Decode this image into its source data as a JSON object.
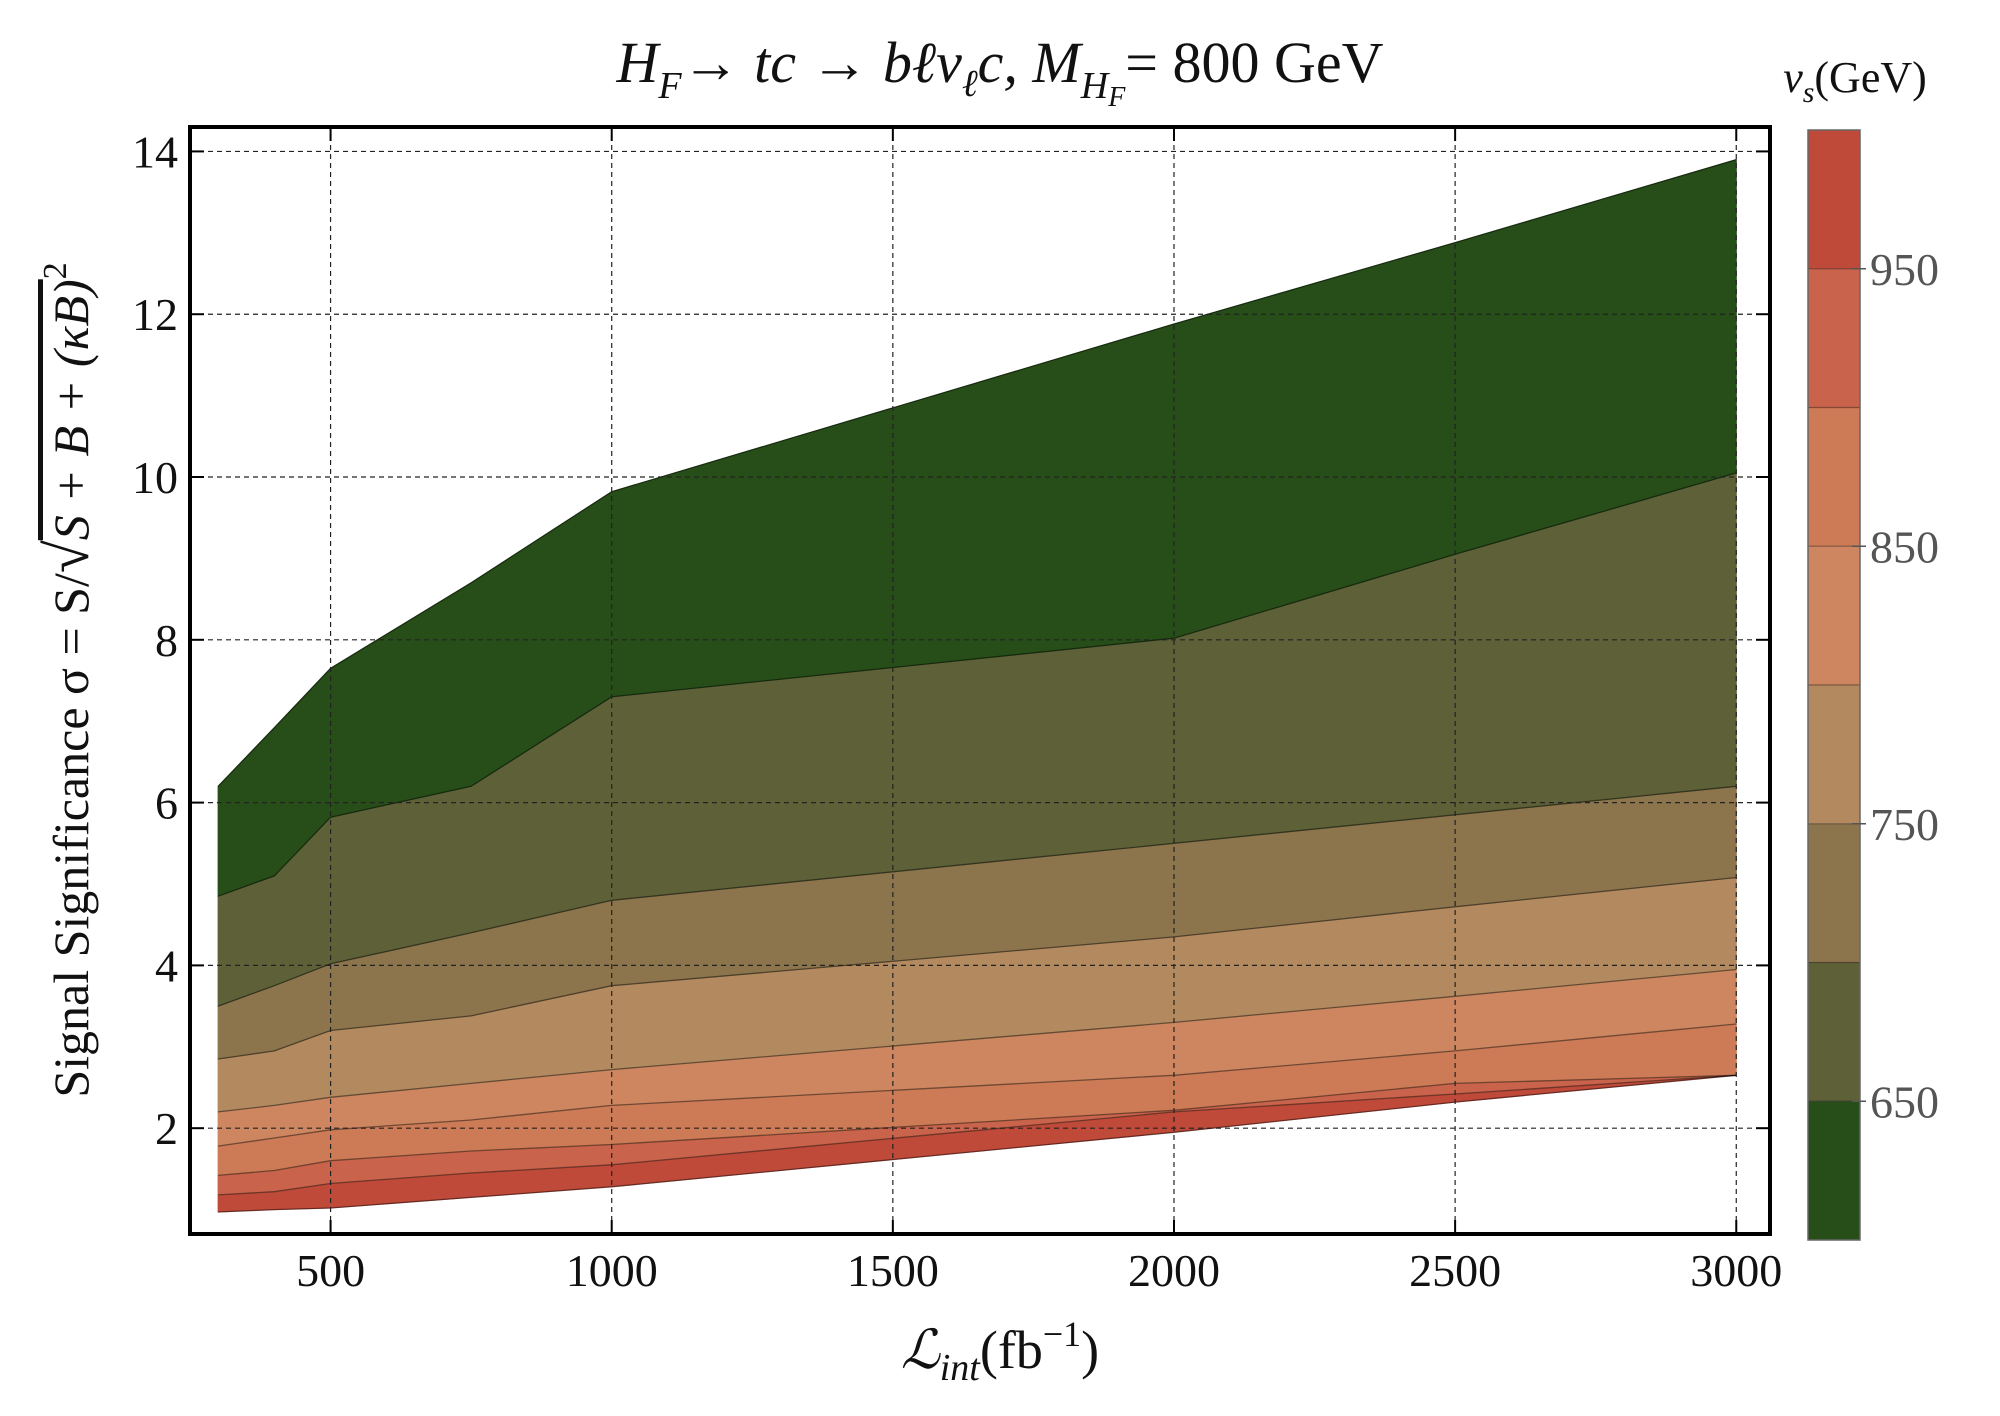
{
  "chart_data": {
    "type": "area",
    "title": "H_F→ tc → bℓν_ℓc, M_{H_F} = 800 GeV",
    "title_parts": {
      "h": "H",
      "h_sub": "F",
      "arrow1": "→ tc → bℓν",
      "nu_sub": "ℓ",
      "c": "c, M",
      "m_sub": "H",
      "m_subsub": "F",
      "mass": "= 800 GeV"
    },
    "xlabel": "ℒ_int(fb^-1)",
    "xlabel_parts": {
      "main": "ℒ",
      "sub": "int",
      "open": "(fb",
      "sup": "−1",
      "close": ")"
    },
    "ylabel": "Signal Significance σ = S/√(S + B + (κB)²)",
    "ylabel_parts": {
      "prefix": "Signal Significance σ = S/",
      "radicand": "S + B + (κB)",
      "sup": "2"
    },
    "xlim": [
      250,
      3060
    ],
    "ylim": [
      0.7,
      14.3
    ],
    "xticks": [
      500,
      1000,
      1500,
      2000,
      2500,
      3000
    ],
    "yticks": [
      2,
      4,
      6,
      8,
      10,
      12,
      14
    ],
    "xtick_labels": [
      "500",
      "1000",
      "1500",
      "2000",
      "2500",
      "3000"
    ],
    "ytick_labels": [
      "2",
      "4",
      "6",
      "8",
      "10",
      "12",
      "14"
    ],
    "grid": true,
    "x": [
      300,
      400,
      500,
      750,
      1000,
      2000,
      2500,
      3000
    ],
    "boundaries": [
      {
        "name": "v_s = 1000 GeV",
        "values": [
          0.97,
          1.0,
          1.02,
          1.15,
          1.28,
          1.95,
          2.32,
          2.65
        ]
      },
      {
        "name": "v_s = 950 GeV",
        "values": [
          1.18,
          1.22,
          1.32,
          1.45,
          1.55,
          2.2,
          2.42,
          2.65
        ]
      },
      {
        "name": "v_s = 900 GeV",
        "values": [
          1.42,
          1.48,
          1.6,
          1.72,
          1.8,
          2.22,
          2.55,
          2.65
        ]
      },
      {
        "name": "v_s = 850 GeV",
        "values": [
          1.78,
          1.88,
          1.98,
          2.1,
          2.28,
          2.65,
          2.95,
          3.28
        ]
      },
      {
        "name": "v_s = 800 GeV",
        "values": [
          2.2,
          2.28,
          2.38,
          2.55,
          2.72,
          3.3,
          3.62,
          3.95
        ]
      },
      {
        "name": "v_s = 750 GeV",
        "values": [
          2.85,
          2.95,
          3.2,
          3.38,
          3.75,
          4.35,
          4.72,
          5.08
        ]
      },
      {
        "name": "v_s = 700 GeV",
        "values": [
          3.5,
          3.75,
          4.02,
          4.4,
          4.8,
          5.5,
          5.85,
          6.2
        ]
      },
      {
        "name": "v_s = 650 GeV",
        "values": [
          4.85,
          5.1,
          5.82,
          6.2,
          7.3,
          8.02,
          9.05,
          10.05
        ]
      },
      {
        "name": "v_s = 600 GeV",
        "values": [
          6.2,
          6.92,
          7.65,
          8.7,
          9.82,
          11.88,
          12.88,
          13.9
        ]
      }
    ],
    "colors": [
      "#b83228",
      "#c04a3a",
      "#c9634b",
      "#cd7a56",
      "#cd8660",
      "#b38a60",
      "#8c744d",
      "#5e6038",
      "#274e19"
    ],
    "colorbar": {
      "title": "v_s(GeV)",
      "title_parts": {
        "v": "v",
        "sub": "s",
        "unit": "(GeV)"
      },
      "range": [
        600,
        1000
      ],
      "ticks": [
        650,
        750,
        850,
        950
      ],
      "tick_labels": [
        "650",
        "750",
        "850",
        "950"
      ],
      "bands": [
        {
          "from": 600,
          "to": 650,
          "color": "#274e19"
        },
        {
          "from": 650,
          "to": 700,
          "color": "#5e6038"
        },
        {
          "from": 700,
          "to": 750,
          "color": "#8c744d"
        },
        {
          "from": 750,
          "to": 800,
          "color": "#b38a60"
        },
        {
          "from": 800,
          "to": 850,
          "color": "#cd8660"
        },
        {
          "from": 850,
          "to": 900,
          "color": "#cd7a56"
        },
        {
          "from": 900,
          "to": 950,
          "color": "#c9634b"
        },
        {
          "from": 950,
          "to": 1000,
          "color": "#c04a3a"
        }
      ]
    }
  }
}
